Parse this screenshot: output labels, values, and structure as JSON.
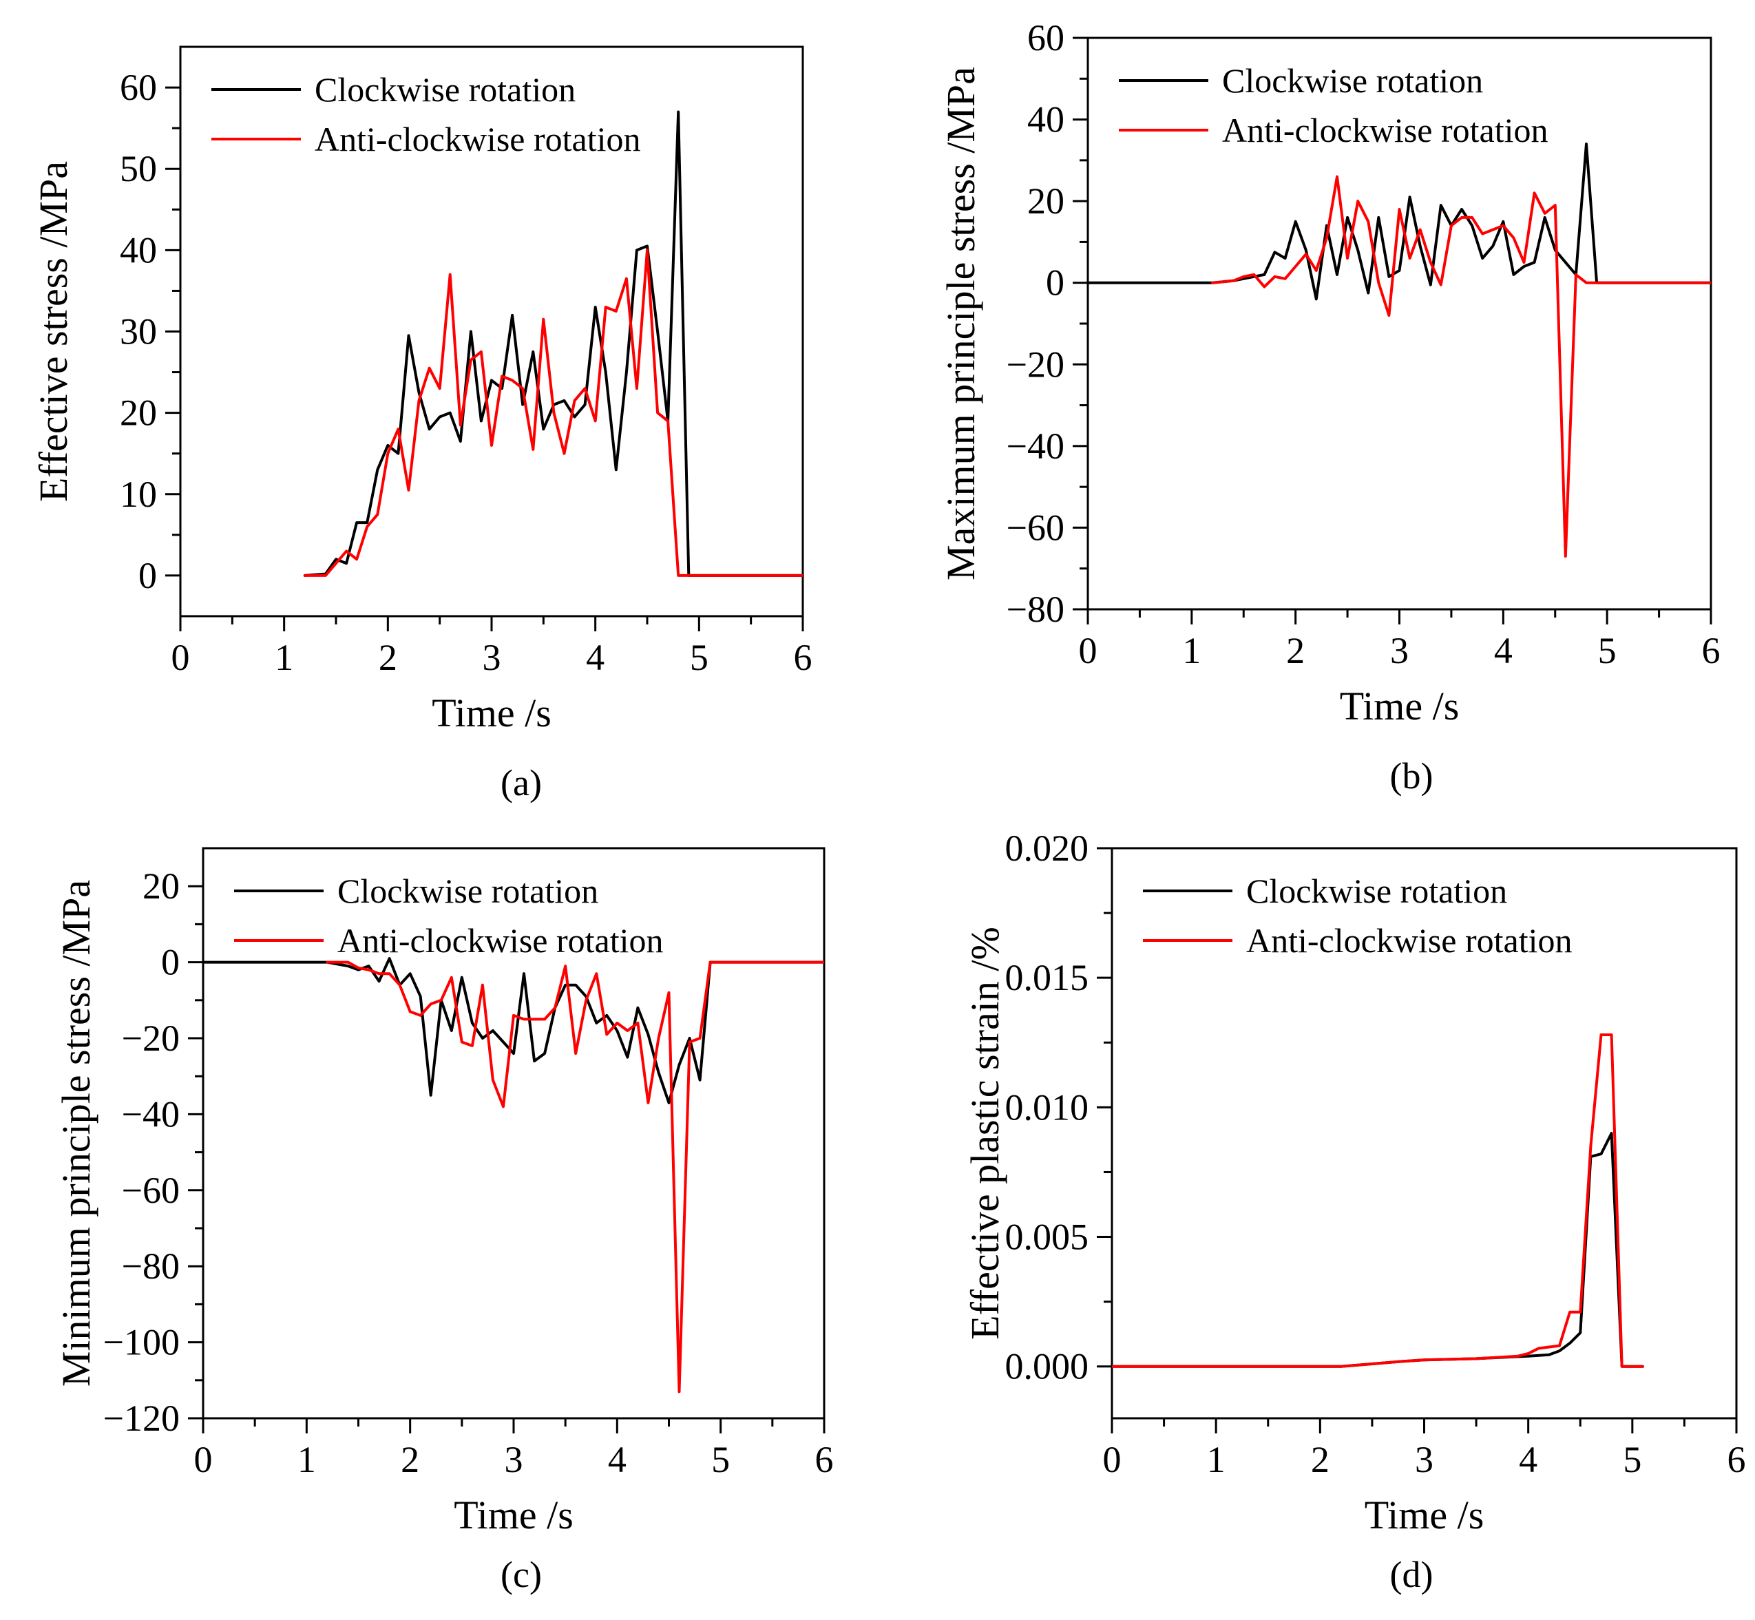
{
  "figure": {
    "series_names": [
      "Clockwise rotation",
      "Anti-clockwise rotation"
    ],
    "series_colors": [
      "#000000",
      "#ff0000"
    ]
  },
  "chart_data": [
    {
      "id": "a",
      "caption": "(a)",
      "type": "line",
      "xlabel": "Time /s",
      "ylabel": "Effective stress /MPa",
      "xlim": [
        0,
        6
      ],
      "ylim": [
        -5,
        65
      ],
      "xticks": [
        0,
        1,
        2,
        3,
        4,
        5,
        6
      ],
      "yticks": [
        0,
        10,
        20,
        30,
        40,
        50,
        60
      ],
      "legend": "top-left",
      "series": [
        {
          "name": "Clockwise rotation",
          "x": [
            1.2,
            1.4,
            1.5,
            1.6,
            1.7,
            1.8,
            1.9,
            2.0,
            2.1,
            2.2,
            2.3,
            2.4,
            2.5,
            2.6,
            2.7,
            2.8,
            2.9,
            3.0,
            3.1,
            3.2,
            3.3,
            3.4,
            3.5,
            3.6,
            3.7,
            3.8,
            3.9,
            4.0,
            4.1,
            4.2,
            4.3,
            4.4,
            4.5,
            4.6,
            4.7,
            4.8,
            4.9,
            6.0
          ],
          "y": [
            0,
            0.2,
            2,
            1.5,
            6.5,
            6.5,
            13,
            16,
            15,
            29.5,
            22.5,
            18,
            19.5,
            20,
            16.5,
            30,
            19,
            24,
            23,
            32,
            21,
            27.5,
            18,
            21,
            21.5,
            19.5,
            21,
            33,
            25,
            13,
            25,
            40,
            40.5,
            30,
            19,
            57,
            0,
            0
          ]
        },
        {
          "name": "Anti-clockwise rotation",
          "x": [
            1.2,
            1.4,
            1.5,
            1.6,
            1.7,
            1.8,
            1.9,
            2.0,
            2.1,
            2.2,
            2.3,
            2.4,
            2.5,
            2.6,
            2.7,
            2.8,
            2.9,
            3.0,
            3.1,
            3.2,
            3.3,
            3.4,
            3.5,
            3.6,
            3.7,
            3.8,
            3.9,
            4.0,
            4.1,
            4.2,
            4.3,
            4.4,
            4.5,
            4.6,
            4.7,
            4.8,
            4.9,
            6.0
          ],
          "y": [
            0,
            0,
            1.5,
            3,
            2,
            6,
            7.5,
            15,
            18,
            10.5,
            21.5,
            25.5,
            23,
            37,
            18.5,
            26.5,
            27.5,
            16,
            24.5,
            24,
            23,
            15.5,
            31.5,
            20,
            15,
            21.5,
            23,
            19,
            33,
            32.5,
            36.5,
            23,
            40,
            20,
            19,
            0,
            0,
            0
          ]
        }
      ]
    },
    {
      "id": "b",
      "caption": "(b)",
      "type": "line",
      "xlabel": "Time /s",
      "ylabel": "Maximum principle stress /MPa",
      "xlim": [
        0,
        6
      ],
      "ylim": [
        -80,
        60
      ],
      "xticks": [
        0,
        1,
        2,
        3,
        4,
        5,
        6
      ],
      "yticks": [
        -80,
        -60,
        -40,
        -20,
        0,
        20,
        40,
        60
      ],
      "legend": "top-left",
      "series": [
        {
          "name": "Clockwise rotation",
          "x": [
            0,
            1.2,
            1.4,
            1.5,
            1.6,
            1.7,
            1.8,
            1.9,
            2.0,
            2.1,
            2.2,
            2.3,
            2.4,
            2.5,
            2.6,
            2.7,
            2.8,
            2.9,
            3.0,
            3.1,
            3.2,
            3.3,
            3.4,
            3.5,
            3.6,
            3.7,
            3.8,
            3.9,
            4.0,
            4.1,
            4.2,
            4.3,
            4.4,
            4.5,
            4.6,
            4.7,
            4.8,
            4.9,
            6.0
          ],
          "y": [
            0,
            0,
            0.5,
            1,
            1.5,
            2,
            7.5,
            6,
            15,
            8,
            -4,
            14,
            2,
            16,
            8,
            -2.5,
            16,
            1.5,
            3,
            21,
            9,
            -0.5,
            19,
            14,
            18,
            14,
            6,
            9,
            15,
            2,
            4,
            5,
            16,
            8,
            5,
            2,
            34,
            0,
            0
          ]
        },
        {
          "name": "Anti-clockwise rotation",
          "x": [
            1.2,
            1.4,
            1.5,
            1.6,
            1.7,
            1.8,
            1.9,
            2.0,
            2.1,
            2.2,
            2.3,
            2.4,
            2.5,
            2.6,
            2.7,
            2.8,
            2.9,
            3.0,
            3.1,
            3.2,
            3.3,
            3.4,
            3.5,
            3.6,
            3.7,
            3.8,
            3.9,
            4.0,
            4.1,
            4.2,
            4.3,
            4.4,
            4.5,
            4.6,
            4.7,
            4.8,
            4.9,
            6.0
          ],
          "y": [
            0,
            0.5,
            1.5,
            2,
            -1,
            1.5,
            1,
            4,
            7,
            3,
            11,
            26,
            6,
            20,
            15,
            0,
            -8,
            18,
            6,
            13,
            5,
            -0.5,
            14,
            16,
            16,
            12,
            13,
            14,
            11,
            5,
            22,
            17,
            19,
            -67,
            2,
            0,
            0,
            0
          ]
        }
      ]
    },
    {
      "id": "c",
      "caption": "(c)",
      "type": "line",
      "xlabel": "Time /s",
      "ylabel": "Minimum principle stress /MPa",
      "xlim": [
        0,
        6
      ],
      "ylim": [
        -120,
        30
      ],
      "xticks": [
        0,
        1,
        2,
        3,
        4,
        5,
        6
      ],
      "yticks": [
        -120,
        -100,
        -80,
        -60,
        -40,
        -20,
        0,
        20
      ],
      "legend": "top-left",
      "series": [
        {
          "name": "Clockwise rotation",
          "x": [
            0,
            1.2,
            1.4,
            1.5,
            1.6,
            1.7,
            1.8,
            1.9,
            2.0,
            2.1,
            2.2,
            2.3,
            2.4,
            2.5,
            2.6,
            2.7,
            2.8,
            2.9,
            3.0,
            3.1,
            3.2,
            3.3,
            3.4,
            3.5,
            3.6,
            3.7,
            3.8,
            3.9,
            4.0,
            4.1,
            4.2,
            4.3,
            4.4,
            4.5,
            4.6,
            4.7,
            4.8,
            4.9,
            6.0
          ],
          "y": [
            0,
            0,
            -1,
            -2,
            -1,
            -5,
            1,
            -6,
            -3,
            -9,
            -35,
            -10,
            -18,
            -4,
            -16,
            -20,
            -18,
            -21,
            -24,
            -3,
            -26,
            -24,
            -12,
            -6,
            -6,
            -9,
            -16,
            -14,
            -18,
            -25,
            -12,
            -19,
            -29,
            -37,
            -27,
            -20,
            -31,
            0,
            0
          ]
        },
        {
          "name": "Anti-clockwise rotation",
          "x": [
            1.2,
            1.4,
            1.5,
            1.6,
            1.7,
            1.8,
            1.9,
            2.0,
            2.1,
            2.2,
            2.3,
            2.4,
            2.5,
            2.6,
            2.7,
            2.8,
            2.9,
            3.0,
            3.1,
            3.2,
            3.3,
            3.4,
            3.5,
            3.6,
            3.7,
            3.8,
            3.9,
            4.0,
            4.1,
            4.2,
            4.3,
            4.4,
            4.5,
            4.6,
            4.7,
            4.8,
            4.9,
            6.0
          ],
          "y": [
            0,
            0,
            -1.5,
            -2,
            -3,
            -3,
            -6,
            -13,
            -14,
            -11,
            -10,
            -4,
            -21,
            -22,
            -6,
            -31,
            -38,
            -14,
            -15,
            -15,
            -15,
            -12,
            -1,
            -24,
            -10,
            -3,
            -19,
            -16,
            -18,
            -16,
            -37,
            -20,
            -8,
            -113,
            -21,
            -20,
            0,
            0
          ]
        }
      ]
    },
    {
      "id": "d",
      "caption": "(d)",
      "type": "line",
      "xlabel": "Time /s",
      "ylabel": "Effective plastic strain /%",
      "xlim": [
        0,
        6
      ],
      "ylim": [
        -0.002,
        0.02
      ],
      "xticks": [
        0,
        1,
        2,
        3,
        4,
        5,
        6
      ],
      "yticks": [
        0.0,
        0.005,
        0.01,
        0.015,
        0.02
      ],
      "ytick_labels": [
        "0.000",
        "0.005",
        "0.010",
        "0.015",
        "0.020"
      ],
      "legend": "top-left",
      "series": [
        {
          "name": "Clockwise rotation",
          "x": [
            0,
            2.2,
            2.5,
            2.8,
            3.0,
            3.5,
            4.0,
            4.2,
            4.3,
            4.4,
            4.5,
            4.6,
            4.7,
            4.8,
            4.9,
            5.1
          ],
          "y": [
            0,
            0,
            0.0001,
            0.0002,
            0.00025,
            0.0003,
            0.0004,
            0.00045,
            0.0006,
            0.0009,
            0.0013,
            0.0081,
            0.0082,
            0.009,
            0,
            0
          ]
        },
        {
          "name": "Anti-clockwise rotation",
          "x": [
            0,
            2.2,
            2.5,
            2.8,
            3.0,
            3.5,
            3.9,
            4.0,
            4.1,
            4.3,
            4.4,
            4.5,
            4.6,
            4.7,
            4.8,
            4.9,
            5.1
          ],
          "y": [
            0,
            0,
            0.0001,
            0.0002,
            0.00025,
            0.0003,
            0.0004,
            0.0005,
            0.0007,
            0.0008,
            0.0021,
            0.0021,
            0.0085,
            0.0128,
            0.0128,
            0,
            0
          ]
        }
      ]
    }
  ]
}
